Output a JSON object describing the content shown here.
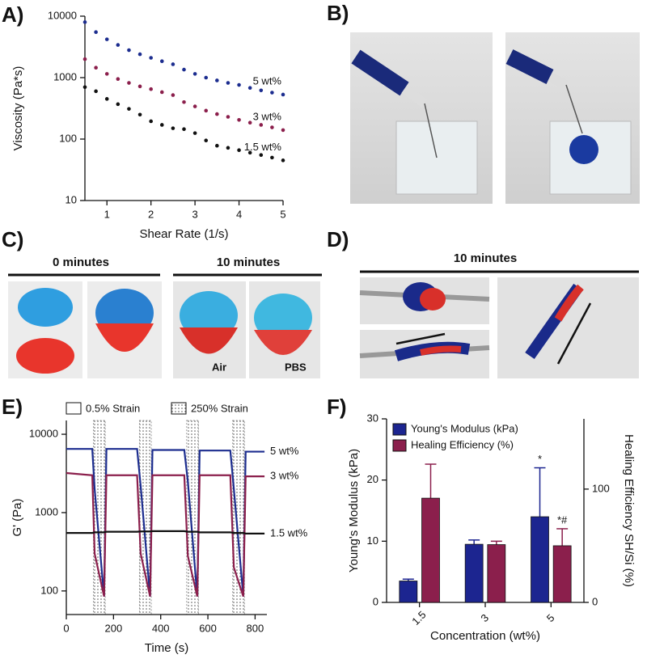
{
  "panels": {
    "labels": [
      "A)",
      "B)",
      "C)",
      "D)",
      "E)",
      "F)"
    ],
    "c_headers": [
      "0 minutes",
      "10 minutes"
    ],
    "c_captions": [
      "Air",
      "PBS"
    ],
    "d_header": "10 minutes"
  },
  "chart_data": [
    {
      "type": "scatter",
      "x_label": "Shear Rate (1/s)",
      "y_label": "Viscosity (Pa*s)",
      "x": [
        0.5,
        0.75,
        1,
        1.25,
        1.5,
        1.75,
        2,
        2.25,
        2.5,
        2.75,
        3,
        3.25,
        3.5,
        3.75,
        4,
        4.25,
        4.5,
        4.75,
        5
      ],
      "series": [
        {
          "name": "5 wt%",
          "color": "#1c2d8f",
          "values": [
            8000,
            5500,
            4200,
            3400,
            2800,
            2400,
            2100,
            1850,
            1650,
            1350,
            1150,
            1000,
            900,
            820,
            760,
            680,
            620,
            570,
            530
          ]
        },
        {
          "name": "3 wt%",
          "color": "#8b1f4c",
          "values": [
            2000,
            1450,
            1150,
            950,
            820,
            720,
            650,
            580,
            520,
            400,
            340,
            290,
            255,
            230,
            205,
            185,
            170,
            155,
            140
          ]
        },
        {
          "name": "1.5 wt%",
          "color": "#111111",
          "values": [
            700,
            600,
            450,
            370,
            310,
            250,
            195,
            170,
            150,
            145,
            125,
            95,
            78,
            72,
            66,
            60,
            55,
            50,
            45
          ]
        }
      ],
      "xlim": [
        0.5,
        5
      ],
      "xticks": [
        1,
        2,
        3,
        4,
        5
      ],
      "ylim": [
        10,
        10000
      ],
      "yticks": [
        10,
        100,
        1000,
        10000
      ],
      "log_y": true
    },
    {
      "type": "line",
      "x_label": "Time (s)",
      "y_label": "G' (Pa)",
      "strain_legend": [
        "0.5% Strain",
        "250% Strain"
      ],
      "high_strain_intervals": [
        [
          115,
          165
        ],
        [
          310,
          360
        ],
        [
          510,
          560
        ],
        [
          705,
          755
        ]
      ],
      "x": [
        0,
        110,
        120,
        160,
        170,
        300,
        315,
        355,
        365,
        500,
        515,
        555,
        565,
        695,
        710,
        750,
        760,
        840
      ],
      "series": [
        {
          "name": "5 wt%",
          "color": "#1c2d8f",
          "values": [
            6500,
            6500,
            2000,
            85,
            6500,
            6500,
            2200,
            85,
            6300,
            6300,
            2500,
            85,
            6200,
            6200,
            2000,
            85,
            6000,
            6000
          ]
        },
        {
          "name": "3 wt%",
          "color": "#8b1f4c",
          "values": [
            3200,
            3000,
            300,
            85,
            3000,
            3000,
            300,
            85,
            3000,
            3000,
            280,
            85,
            3000,
            3000,
            200,
            85,
            2900,
            2900
          ]
        },
        {
          "name": "1.5 wt%",
          "color": "#111111",
          "values": [
            550,
            550,
            560,
            560,
            570,
            570,
            575,
            575,
            580,
            580,
            570,
            570,
            560,
            560,
            550,
            550,
            540,
            540
          ]
        }
      ],
      "xlim": [
        0,
        850
      ],
      "xticks": [
        0,
        200,
        400,
        600,
        800
      ],
      "ylim": [
        50,
        15000
      ],
      "yticks": [
        100,
        1000,
        10000
      ],
      "log_y": true
    },
    {
      "type": "bar",
      "x_label": "Concentration (wt%)",
      "y_label": "Young's Modulus (kPa)",
      "y2_label": "Healing Efficiency SH/Si (%)",
      "categories": [
        "1.5",
        "3",
        "5"
      ],
      "series": [
        {
          "name": "Young's Modulus (kPa)",
          "color": "#1c2590",
          "values": [
            3.5,
            9.5,
            14
          ],
          "errors": [
            0.3,
            0.7,
            8
          ],
          "annotations": [
            null,
            null,
            "*"
          ]
        },
        {
          "name": "Healing Efficiency (%)",
          "color": "#8b1f4c",
          "axis": "y2",
          "values": [
            92,
            51,
            50
          ],
          "errors": [
            30,
            3,
            15
          ],
          "annotations": [
            null,
            null,
            "*#"
          ]
        }
      ],
      "ylim": [
        0,
        30
      ],
      "yticks": [
        0,
        10,
        20,
        30
      ],
      "y2lim": [
        0,
        162
      ],
      "y2ticks": [
        0,
        100
      ]
    }
  ]
}
